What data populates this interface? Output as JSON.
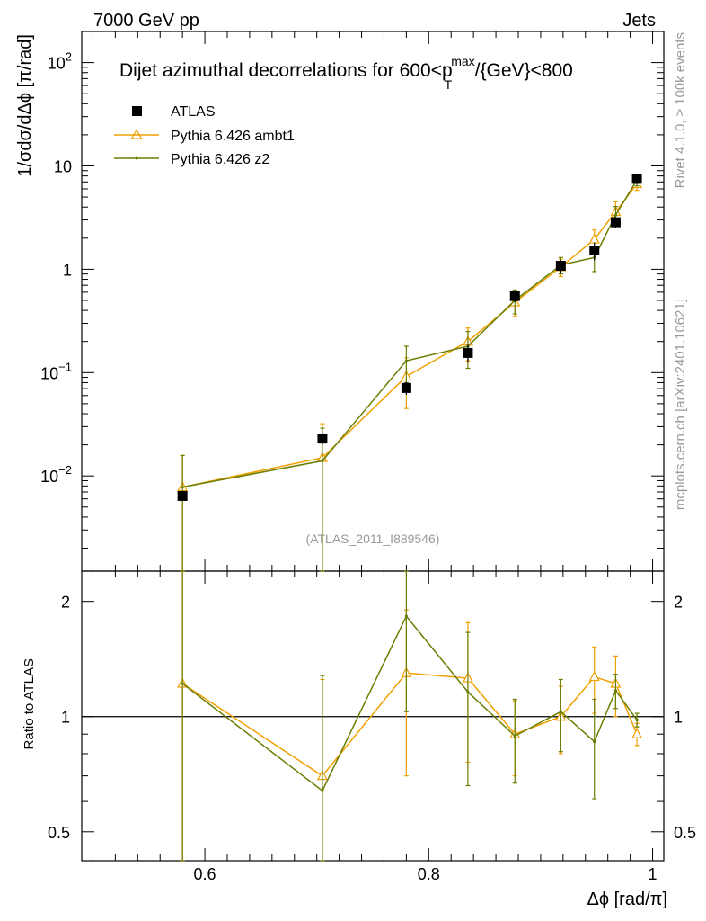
{
  "header": {
    "left_label": "7000 GeV pp",
    "right_label": "Jets"
  },
  "side_labels": {
    "rivet": "Rivet 4.1.0, ≥ 100k events",
    "mcplots": "mcplots.cern.ch [arXiv:2401.10621]"
  },
  "chart_data": {
    "type": "line",
    "title": "Dijet azimuthal decorrelations for 600<p_T^max/{GeV}<800",
    "title_parts": {
      "prefix": "Dijet azimuthal decorrelations for 600<p",
      "sup": "max",
      "sub": "T",
      "suffix": "/{GeV}<800"
    },
    "xlabel": "Δϕ [rad/π]",
    "ylabel": "1/σdσ/dΔϕ [π/rad]",
    "ratio_ylabel": "Ratio to ATLAS",
    "analysis_tag": "(ATLAS_2011_I889546)",
    "xlim": [
      0.49,
      1.01
    ],
    "ylim": [
      0.0012,
      200
    ],
    "yscale": "log",
    "ratio_ylim": [
      0.42,
      2.4
    ],
    "ratio_yscale": "log",
    "x_ticks": [
      0.6,
      0.8,
      1
    ],
    "x_tick_labels": [
      "0.6",
      "0.8",
      "1"
    ],
    "y_ticks": [
      {
        "value": 0.01,
        "base": "10",
        "exp": "−2"
      },
      {
        "value": 0.1,
        "base": "10",
        "exp": "−1"
      },
      {
        "value": 1,
        "base": "1",
        "exp": ""
      },
      {
        "value": 10,
        "base": "10",
        "exp": ""
      },
      {
        "value": 100,
        "base": "10",
        "exp": "2"
      }
    ],
    "ratio_y_ticks": [
      0.5,
      1,
      2
    ],
    "ratio_y_tick_labels": [
      "0.5",
      "1",
      "2"
    ],
    "legend_position": "top-left",
    "series": [
      {
        "name": "ATLAS",
        "style": "markers",
        "color": "#000000",
        "x": [
          0.58,
          0.705,
          0.78,
          0.835,
          0.877,
          0.918,
          0.948,
          0.967,
          0.986
        ],
        "y": [
          0.0064,
          0.023,
          0.071,
          0.155,
          0.55,
          1.08,
          1.52,
          2.85,
          7.5
        ],
        "yerr": [
          0.0007,
          0.003,
          0.01,
          0.03,
          0.07,
          0.15,
          0.3,
          0.35,
          0.9
        ]
      },
      {
        "name": "Pythia 6.426 ambt1",
        "style": "line-triangle",
        "color": "#f0a000",
        "x": [
          0.58,
          0.705,
          0.78,
          0.835,
          0.877,
          0.918,
          0.948,
          0.967,
          0.986
        ],
        "y": [
          0.0078,
          0.015,
          0.092,
          0.2,
          0.48,
          1.05,
          1.95,
          3.6,
          6.7
        ],
        "yerr": [
          0.008,
          0.017,
          0.047,
          0.07,
          0.13,
          0.2,
          0.45,
          0.9,
          0.9
        ],
        "ratio": [
          1.22,
          0.7,
          1.3,
          1.26,
          0.9,
          1.0,
          1.27,
          1.22,
          0.9
        ],
        "ratio_err": [
          1.2,
          0.55,
          0.6,
          0.5,
          0.2,
          0.2,
          0.25,
          0.22,
          0.06
        ]
      },
      {
        "name": "Pythia 6.426 z2",
        "style": "line-dot",
        "color": "#6b7d00",
        "x": [
          0.58,
          0.705,
          0.78,
          0.835,
          0.877,
          0.918,
          0.948,
          0.967,
          0.986
        ],
        "y": [
          0.0078,
          0.014,
          0.13,
          0.18,
          0.5,
          1.1,
          1.3,
          3.35,
          7.3
        ],
        "yerr": [
          0.008,
          0.015,
          0.05,
          0.07,
          0.13,
          0.2,
          0.35,
          0.7,
          0.9
        ],
        "ratio": [
          1.22,
          0.64,
          1.83,
          1.16,
          0.89,
          1.03,
          0.86,
          1.17,
          0.98
        ],
        "ratio_err": [
          1.2,
          0.64,
          0.8,
          0.5,
          0.22,
          0.22,
          0.25,
          0.12,
          0.04
        ]
      }
    ]
  }
}
